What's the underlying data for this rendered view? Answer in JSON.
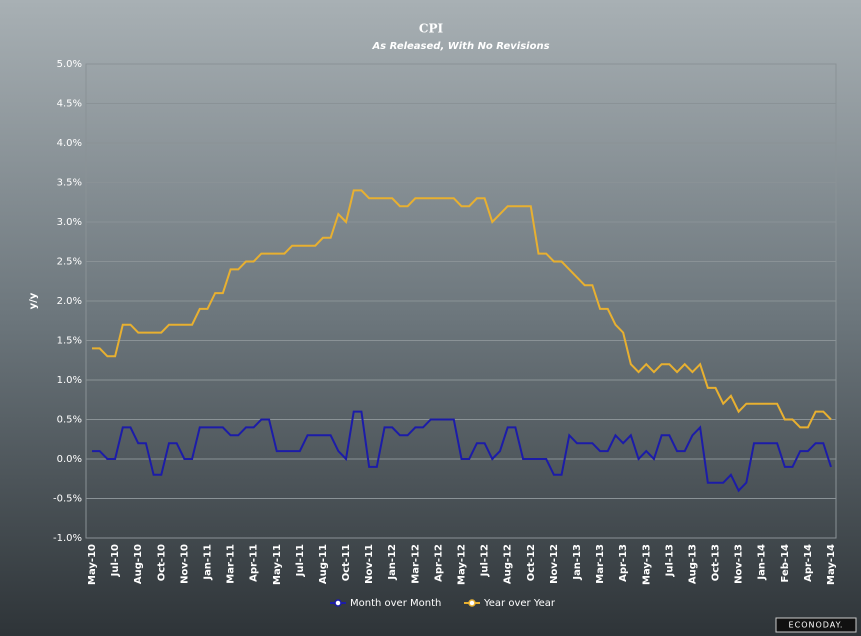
{
  "chart_data": {
    "type": "line",
    "title": "CPI",
    "subtitle": "As Released, With No Revisions",
    "y_label": "y/y",
    "watermark": "ECONODAY.",
    "categories": [
      "May-10",
      null,
      null,
      "Jul-10",
      null,
      null,
      "Aug-10",
      null,
      null,
      "Oct-10",
      null,
      null,
      "Nov-10",
      null,
      null,
      "Jan-11",
      null,
      null,
      "Mar-11",
      null,
      null,
      "Apr-11",
      null,
      null,
      "May-11",
      null,
      null,
      "Jul-11",
      null,
      null,
      "Aug-11",
      null,
      null,
      "Oct-11",
      null,
      null,
      "Nov-11",
      null,
      null,
      "Jan-12",
      null,
      null,
      "Mar-12",
      null,
      null,
      "Apr-12",
      null,
      null,
      "May-12",
      null,
      null,
      "Jul-12",
      null,
      null,
      "Aug-12",
      null,
      null,
      "Oct-12",
      null,
      null,
      "Nov-12",
      null,
      null,
      "Jan-13",
      null,
      null,
      "Mar-13",
      null,
      null,
      "Apr-13",
      null,
      null,
      "May-13",
      null,
      null,
      "Jul-13",
      null,
      null,
      "Aug-13",
      null,
      null,
      "Oct-13",
      null,
      null,
      "Nov-13",
      null,
      null,
      "Jan-14",
      null,
      null,
      "Feb-14",
      null,
      null,
      "Apr-14",
      null,
      null,
      "May-14"
    ],
    "series": [
      {
        "name": "Month over Month",
        "color": "#1c1ca8",
        "values": [
          0.1,
          0.1,
          0.0,
          0.0,
          0.4,
          0.4,
          0.2,
          0.2,
          -0.2,
          -0.2,
          0.2,
          0.2,
          0.0,
          0.0,
          0.4,
          0.4,
          0.4,
          0.4,
          0.3,
          0.3,
          0.4,
          0.4,
          0.5,
          0.5,
          0.1,
          0.1,
          0.1,
          0.1,
          0.3,
          0.3,
          0.3,
          0.3,
          0.1,
          0.0,
          0.6,
          0.6,
          -0.1,
          -0.1,
          0.4,
          0.4,
          0.3,
          0.3,
          0.4,
          0.4,
          0.5,
          0.5,
          0.5,
          0.5,
          0.0,
          0.0,
          0.2,
          0.2,
          0.0,
          0.1,
          0.4,
          0.4,
          0.0,
          0.0,
          0.0,
          0.0,
          -0.2,
          -0.2,
          0.3,
          0.2,
          0.2,
          0.2,
          0.1,
          0.1,
          0.3,
          0.2,
          0.3,
          0.0,
          0.1,
          0.0,
          0.3,
          0.3,
          0.1,
          0.1,
          0.3,
          0.4,
          -0.3,
          -0.3,
          -0.3,
          -0.2,
          -0.4,
          -0.3,
          0.2,
          0.2,
          0.2,
          0.2,
          -0.1,
          -0.1,
          0.1,
          0.1,
          0.2,
          0.2,
          -0.1
        ]
      },
      {
        "name": "Year over Year",
        "color": "#e8b030",
        "values": [
          1.4,
          1.4,
          1.3,
          1.3,
          1.7,
          1.7,
          1.6,
          1.6,
          1.6,
          1.6,
          1.7,
          1.7,
          1.7,
          1.7,
          1.9,
          1.9,
          2.1,
          2.1,
          2.4,
          2.4,
          2.5,
          2.5,
          2.6,
          2.6,
          2.6,
          2.6,
          2.7,
          2.7,
          2.7,
          2.7,
          2.8,
          2.8,
          3.1,
          3.0,
          3.4,
          3.4,
          3.3,
          3.3,
          3.3,
          3.3,
          3.2,
          3.2,
          3.3,
          3.3,
          3.3,
          3.3,
          3.3,
          3.3,
          3.2,
          3.2,
          3.3,
          3.3,
          3.0,
          3.1,
          3.2,
          3.2,
          3.2,
          3.2,
          2.6,
          2.6,
          2.5,
          2.5,
          2.4,
          2.3,
          2.2,
          2.2,
          1.9,
          1.9,
          1.7,
          1.6,
          1.2,
          1.1,
          1.2,
          1.1,
          1.2,
          1.2,
          1.1,
          1.2,
          1.1,
          1.2,
          0.9,
          0.9,
          0.7,
          0.8,
          0.6,
          0.7,
          0.7,
          0.7,
          0.7,
          0.7,
          0.5,
          0.5,
          0.4,
          0.4,
          0.6,
          0.6,
          0.5
        ]
      }
    ],
    "ylim": [
      -1.0,
      5.0
    ],
    "yticks": [
      {
        "value": -1.0,
        "label": "-1.0%"
      },
      {
        "value": -0.5,
        "label": "-0.5%"
      },
      {
        "value": 0.0,
        "label": "0.0%"
      },
      {
        "value": 0.5,
        "label": "0.5%"
      },
      {
        "value": 1.0,
        "label": "1.0%"
      },
      {
        "value": 1.5,
        "label": "1.5%"
      },
      {
        "value": 2.0,
        "label": "2.0%"
      },
      {
        "value": 2.5,
        "label": "2.5%"
      },
      {
        "value": 3.0,
        "label": "3.0%"
      },
      {
        "value": 3.5,
        "label": "3.5%"
      },
      {
        "value": 4.0,
        "label": "4.0%"
      },
      {
        "value": 4.5,
        "label": "4.5%"
      },
      {
        "value": 5.0,
        "label": "5.0%"
      }
    ],
    "grid": true,
    "legend": "bottom"
  }
}
